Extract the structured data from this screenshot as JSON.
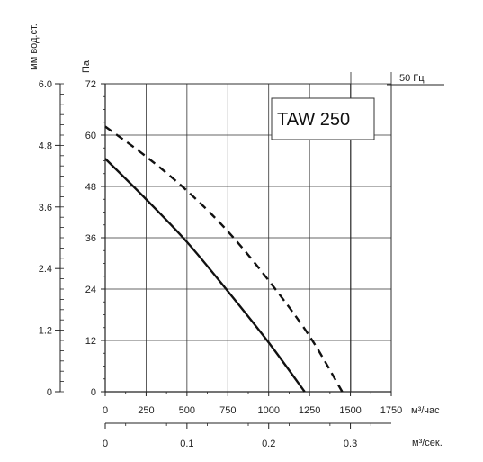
{
  "chart_data": {
    "type": "line",
    "title": "TAW 250",
    "frequency_label": "50 Гц",
    "y_left_label": "мм вод.ст.",
    "y_left_ticks": [
      "0",
      "1.2",
      "2.4",
      "3.6",
      "4.8",
      "6.0"
    ],
    "y_right_label": "Па",
    "y_right_ticks": [
      "0",
      "12",
      "24",
      "36",
      "48",
      "60",
      "72"
    ],
    "ylim": [
      0,
      72
    ],
    "x_label": "м³/час",
    "x_ticks": [
      "0",
      "250",
      "500",
      "750",
      "1000",
      "1250",
      "1500",
      "1750"
    ],
    "xlim": [
      0,
      1750
    ],
    "x2_label": "м³/сек.",
    "x2_ticks": [
      "0",
      "0.1",
      "0.2",
      "0.3"
    ],
    "grid": true,
    "series": [
      {
        "style": "solid",
        "x": [
          0,
          250,
          500,
          750,
          1000,
          1220
        ],
        "y": [
          54.5,
          45,
          35,
          23.5,
          11.5,
          0
        ]
      },
      {
        "style": "dashed",
        "x": [
          0,
          250,
          500,
          750,
          1000,
          1250,
          1450
        ],
        "y": [
          62,
          55,
          47,
          37.5,
          26,
          13,
          0
        ]
      }
    ]
  }
}
